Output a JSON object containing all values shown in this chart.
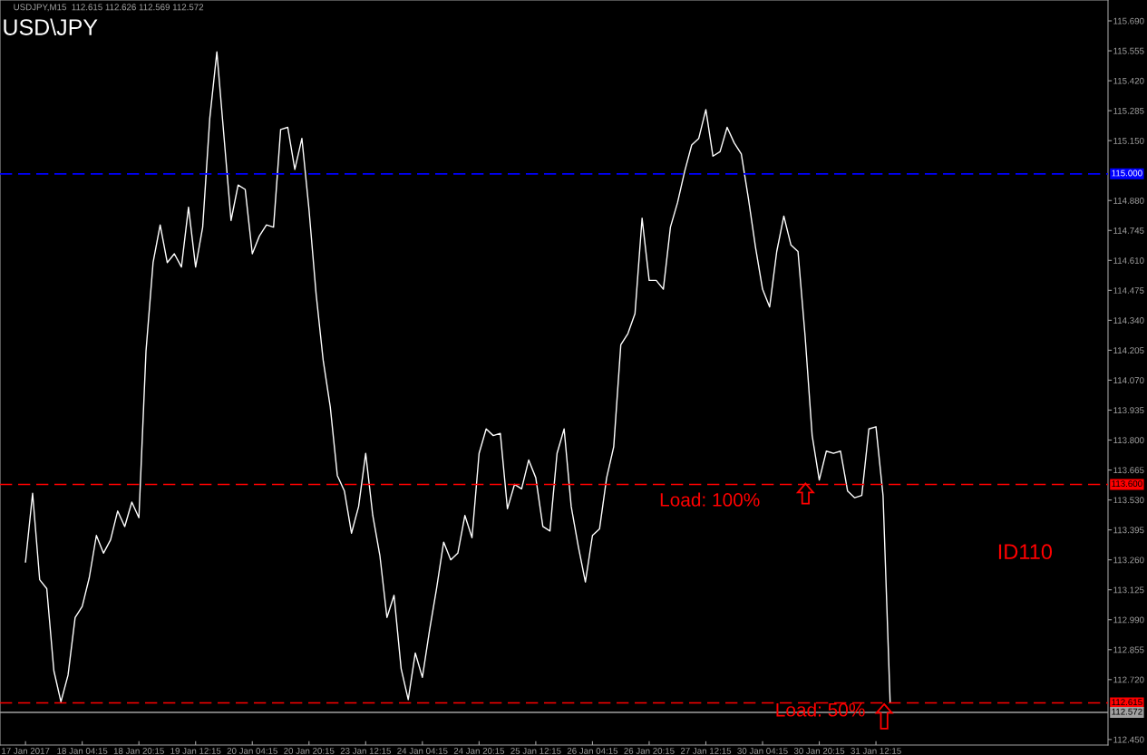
{
  "chart_data": {
    "type": "line",
    "title": "USD\\JPY",
    "subtitle": "USDJPY,M15  112.615 112.626 112.569 112.572",
    "categories": [
      "17 Jan 2017",
      null,
      null,
      null,
      null,
      null,
      null,
      null,
      "18 Jan 04:15",
      null,
      null,
      null,
      null,
      null,
      null,
      null,
      "18 Jan 20:15",
      null,
      null,
      null,
      null,
      null,
      null,
      null,
      "19 Jan 12:15",
      null,
      null,
      null,
      null,
      null,
      null,
      null,
      "20 Jan 04:15",
      null,
      null,
      null,
      null,
      null,
      null,
      null,
      "20 Jan 20:15",
      null,
      null,
      null,
      null,
      null,
      null,
      null,
      "23 Jan 12:15",
      null,
      null,
      null,
      null,
      null,
      null,
      null,
      "24 Jan 04:15",
      null,
      null,
      null,
      null,
      null,
      null,
      null,
      "24 Jan 20:15",
      null,
      null,
      null,
      null,
      null,
      null,
      null,
      "25 Jan 12:15",
      null,
      null,
      null,
      null,
      null,
      null,
      null,
      "26 Jan 04:15",
      null,
      null,
      null,
      null,
      null,
      null,
      null,
      "26 Jan 20:15",
      null,
      null,
      null,
      null,
      null,
      null,
      null,
      "27 Jan 12:15",
      null,
      null,
      null,
      null,
      null,
      null,
      null,
      "30 Jan 04:15",
      null,
      null,
      null,
      null,
      null,
      null,
      null,
      "30 Jan 20:15",
      null,
      null,
      null,
      null,
      null,
      null,
      null,
      "31 Jan 12:15",
      null,
      null
    ],
    "series": [
      {
        "color": "#ffffff",
        "values": [
          113.25,
          113.56,
          113.17,
          113.13,
          112.76,
          112.62,
          112.74,
          113.0,
          113.05,
          113.18,
          113.37,
          113.29,
          113.35,
          113.48,
          113.41,
          113.52,
          113.45,
          114.2,
          114.6,
          114.77,
          114.6,
          114.64,
          114.58,
          114.85,
          114.58,
          114.76,
          115.25,
          115.55,
          115.17,
          114.79,
          114.95,
          114.93,
          114.64,
          114.72,
          114.77,
          114.76,
          115.2,
          115.21,
          115.02,
          115.16,
          114.84,
          114.46,
          114.16,
          113.95,
          113.64,
          113.57,
          113.38,
          113.5,
          113.74,
          113.46,
          113.28,
          113.0,
          113.1,
          112.77,
          112.63,
          112.84,
          112.73,
          112.94,
          113.13,
          113.34,
          113.26,
          113.29,
          113.46,
          113.36,
          113.74,
          113.85,
          113.82,
          113.83,
          113.49,
          113.6,
          113.58,
          113.71,
          113.63,
          113.41,
          113.39,
          113.74,
          113.85,
          113.5,
          113.32,
          113.16,
          113.37,
          113.4,
          113.63,
          113.77,
          114.23,
          114.28,
          114.37,
          114.8,
          114.52,
          114.52,
          114.48,
          114.76,
          114.87,
          115.01,
          115.13,
          115.16,
          115.29,
          115.08,
          115.1,
          115.21,
          115.14,
          115.09,
          114.89,
          114.67,
          114.48,
          114.4,
          114.65,
          114.81,
          114.68,
          114.65,
          114.27,
          113.82,
          113.62,
          113.75,
          113.74,
          113.75,
          113.57,
          113.54,
          113.55,
          113.85,
          113.86,
          113.55,
          112.62
        ]
      }
    ],
    "ylim": [
      112.425,
      115.784
    ],
    "yticks": [
      {
        "value": 115.69,
        "label": "115.690"
      },
      {
        "value": 115.555,
        "label": "115.555"
      },
      {
        "value": 115.42,
        "label": "115.420"
      },
      {
        "value": 115.285,
        "label": "115.285"
      },
      {
        "value": 115.15,
        "label": "115.150"
      },
      {
        "value": 114.88,
        "label": "114.880"
      },
      {
        "value": 114.745,
        "label": "114.745"
      },
      {
        "value": 114.61,
        "label": "114.610"
      },
      {
        "value": 114.475,
        "label": "114.475"
      },
      {
        "value": 114.34,
        "label": "114.340"
      },
      {
        "value": 114.205,
        "label": "114.205"
      },
      {
        "value": 114.07,
        "label": "114.070"
      },
      {
        "value": 113.935,
        "label": "113.935"
      },
      {
        "value": 113.8,
        "label": "113.800"
      },
      {
        "value": 113.665,
        "label": "113.665"
      },
      {
        "value": 113.53,
        "label": "113.530"
      },
      {
        "value": 113.395,
        "label": "113.395"
      },
      {
        "value": 113.26,
        "label": "113.260"
      },
      {
        "value": 113.125,
        "label": "113.125"
      },
      {
        "value": 112.99,
        "label": "112.990"
      },
      {
        "value": 112.855,
        "label": "112.855"
      },
      {
        "value": 112.72,
        "label": "112.720"
      },
      {
        "value": 112.45,
        "label": "112.450"
      }
    ],
    "ref_lines": [
      {
        "axis": "y",
        "value": 115.0,
        "label": "115.000",
        "color": "#0000ff",
        "line_style": "dashed"
      },
      {
        "axis": "y",
        "value": 113.6,
        "label": "113.600",
        "color": "#ff0000",
        "line_style": "dashed"
      },
      {
        "axis": "y",
        "value": 112.615,
        "label": "112.615",
        "color": "#ff0000",
        "line_style": "dashed"
      },
      {
        "axis": "y",
        "value": 112.572,
        "label": "112.572",
        "color": "#a0a0a0",
        "line_style": "solid"
      }
    ],
    "annotations": [
      "Load: 100%",
      "Load: 50%",
      "ID110"
    ]
  }
}
